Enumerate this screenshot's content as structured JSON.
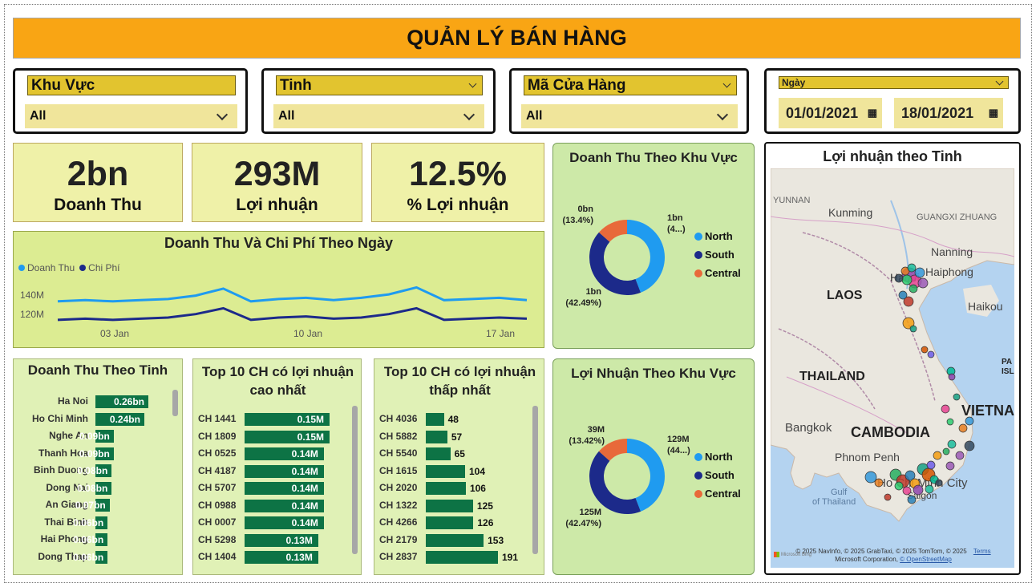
{
  "header": {
    "title": "QUẢN LÝ BÁN HÀNG"
  },
  "filters": {
    "khu_vuc": {
      "label": "Khu Vực",
      "value": "All"
    },
    "tinh": {
      "label": "Tinh",
      "value": "All"
    },
    "ma_cua_hang": {
      "label": "Mã Cửa Hàng",
      "value": "All"
    },
    "ngay": {
      "label": "Ngày",
      "from": "01/01/2021",
      "to": "18/01/2021"
    }
  },
  "kpis": {
    "doanh_thu": {
      "value": "2bn",
      "label": "Doanh Thu"
    },
    "loi_nhuan": {
      "value": "293M",
      "label": "Lợi nhuận"
    },
    "pct": {
      "value": "12.5%",
      "label": "% Lợi nhuận"
    }
  },
  "line_chart": {
    "title": "Doanh Thu Và Chi Phí Theo Ngày",
    "legend": [
      "Doanh Thu",
      "Chi Phí"
    ],
    "y_ticks": [
      "140M",
      "120M"
    ],
    "x_ticks": [
      "03 Jan",
      "10 Jan",
      "17 Jan"
    ]
  },
  "chart_data": [
    {
      "type": "line",
      "title": "Doanh Thu Và Chi Phí Theo Ngày",
      "x": [
        "01 Jan",
        "02 Jan",
        "03 Jan",
        "04 Jan",
        "05 Jan",
        "06 Jan",
        "07 Jan",
        "08 Jan",
        "09 Jan",
        "10 Jan",
        "11 Jan",
        "12 Jan",
        "13 Jan",
        "14 Jan",
        "15 Jan",
        "16 Jan",
        "17 Jan",
        "18 Jan"
      ],
      "series": [
        {
          "name": "Doanh Thu",
          "color": "#1f9bf0",
          "values": [
            128,
            129,
            128,
            129,
            130,
            133,
            139,
            128,
            130,
            131,
            129,
            131,
            134,
            140,
            129,
            130,
            131,
            129
          ]
        },
        {
          "name": "Chi Phí",
          "color": "#1c2a8a",
          "values": [
            112,
            113,
            112,
            113,
            114,
            117,
            122,
            112,
            114,
            115,
            113,
            114,
            117,
            122,
            112,
            113,
            114,
            113
          ]
        }
      ],
      "ylim": [
        105,
        150
      ]
    },
    {
      "type": "bar",
      "title": "Doanh Thu Theo Tinh",
      "categories": [
        "Ha Noi",
        "Ho Chi Minh",
        "Nghe An",
        "Thanh Hoa",
        "Binh Duong",
        "Dong Nai",
        "An Giang",
        "Thai Binh",
        "Hai Phong",
        "Dong Thap"
      ],
      "values": [
        0.26,
        0.24,
        0.09,
        0.09,
        0.08,
        0.08,
        0.07,
        0.06,
        0.06,
        0.06
      ],
      "labels": [
        "0.26bn",
        "0.24bn",
        "0.09bn",
        "0.09bn",
        "0.08bn",
        "0.08bn",
        "0.07bn",
        "0.06bn",
        "0.06bn",
        "0.06bn"
      ]
    },
    {
      "type": "bar",
      "title": "Top 10 CH có lợi nhuận cao nhất",
      "categories": [
        "CH 1441",
        "CH 1809",
        "CH 0525",
        "CH 4187",
        "CH 5707",
        "CH 0988",
        "CH 0007",
        "CH 5298",
        "CH 1404"
      ],
      "values": [
        0.15,
        0.15,
        0.14,
        0.14,
        0.14,
        0.14,
        0.14,
        0.13,
        0.13
      ],
      "labels": [
        "0.15M",
        "0.15M",
        "0.14M",
        "0.14M",
        "0.14M",
        "0.14M",
        "0.14M",
        "0.13M",
        "0.13M"
      ]
    },
    {
      "type": "bar",
      "title": "Top 10 CH có lợi nhuận thấp nhất",
      "categories": [
        "CH 4036",
        "CH 5882",
        "CH 5540",
        "CH 1615",
        "CH 2020",
        "CH 1322",
        "CH 4266",
        "CH 2179",
        "CH 2837"
      ],
      "values": [
        48,
        57,
        65,
        104,
        106,
        125,
        126,
        153,
        191
      ],
      "labels": [
        "48",
        "57",
        "65",
        "104",
        "106",
        "125",
        "126",
        "153",
        "191"
      ]
    },
    {
      "type": "pie",
      "title": "Doanh Thu Theo Khu Vực",
      "categories": [
        "North",
        "South",
        "Central"
      ],
      "values": [
        44.11,
        42.49,
        13.4
      ],
      "labels": [
        {
          "v": "1bn",
          "p": "(4...)"
        },
        {
          "v": "1bn",
          "p": "(42.49%)"
        },
        {
          "v": "0bn",
          "p": "(13.4%)"
        }
      ]
    },
    {
      "type": "pie",
      "title": "Lợi Nhuận Theo Khu Vực",
      "categories": [
        "North",
        "South",
        "Central"
      ],
      "values": [
        44.11,
        42.47,
        13.42
      ],
      "labels": [
        {
          "v": "129M",
          "p": "(44...)"
        },
        {
          "v": "125M",
          "p": "(42.47%)"
        },
        {
          "v": "39M",
          "p": "(13.42%)"
        }
      ]
    }
  ],
  "colors": {
    "north": "#1f9bf0",
    "south": "#1c2a8a",
    "central": "#e8693a",
    "bar": "#0d7345"
  },
  "map": {
    "title": "Lợi nhuận theo Tinh",
    "labels": {
      "yunnan": "YUNNAN",
      "kunming": "Kunming",
      "guangxi": "GUANGXI ZHUANG",
      "nanning": "Nanning",
      "laos": "LAOS",
      "hanoi": "Hanoi",
      "haiphong": "Haiphong",
      "haikou": "Haikou",
      "thailand": "THAILAND",
      "vietnam": "VIETNAM",
      "bangkok": "Bangkok",
      "cambodia": "CAMBODIA",
      "phnompenh": "Phnom Penh",
      "gulf": "Gulf",
      "of_thailand": "of Thailand",
      "hcm": "Ho Chi Minh City",
      "saigon": "Saigon",
      "pa": "PA",
      "isl": "ISL"
    },
    "attribution": "© 2025 NavInfo, © 2025 GrabTaxi, © 2025 TomTom, © 2025",
    "attribution2": "Microsoft Corporation,",
    "osm": "© OpenStreetMap",
    "terms": "Terms",
    "ms_bing": "Microsoft Bing"
  }
}
